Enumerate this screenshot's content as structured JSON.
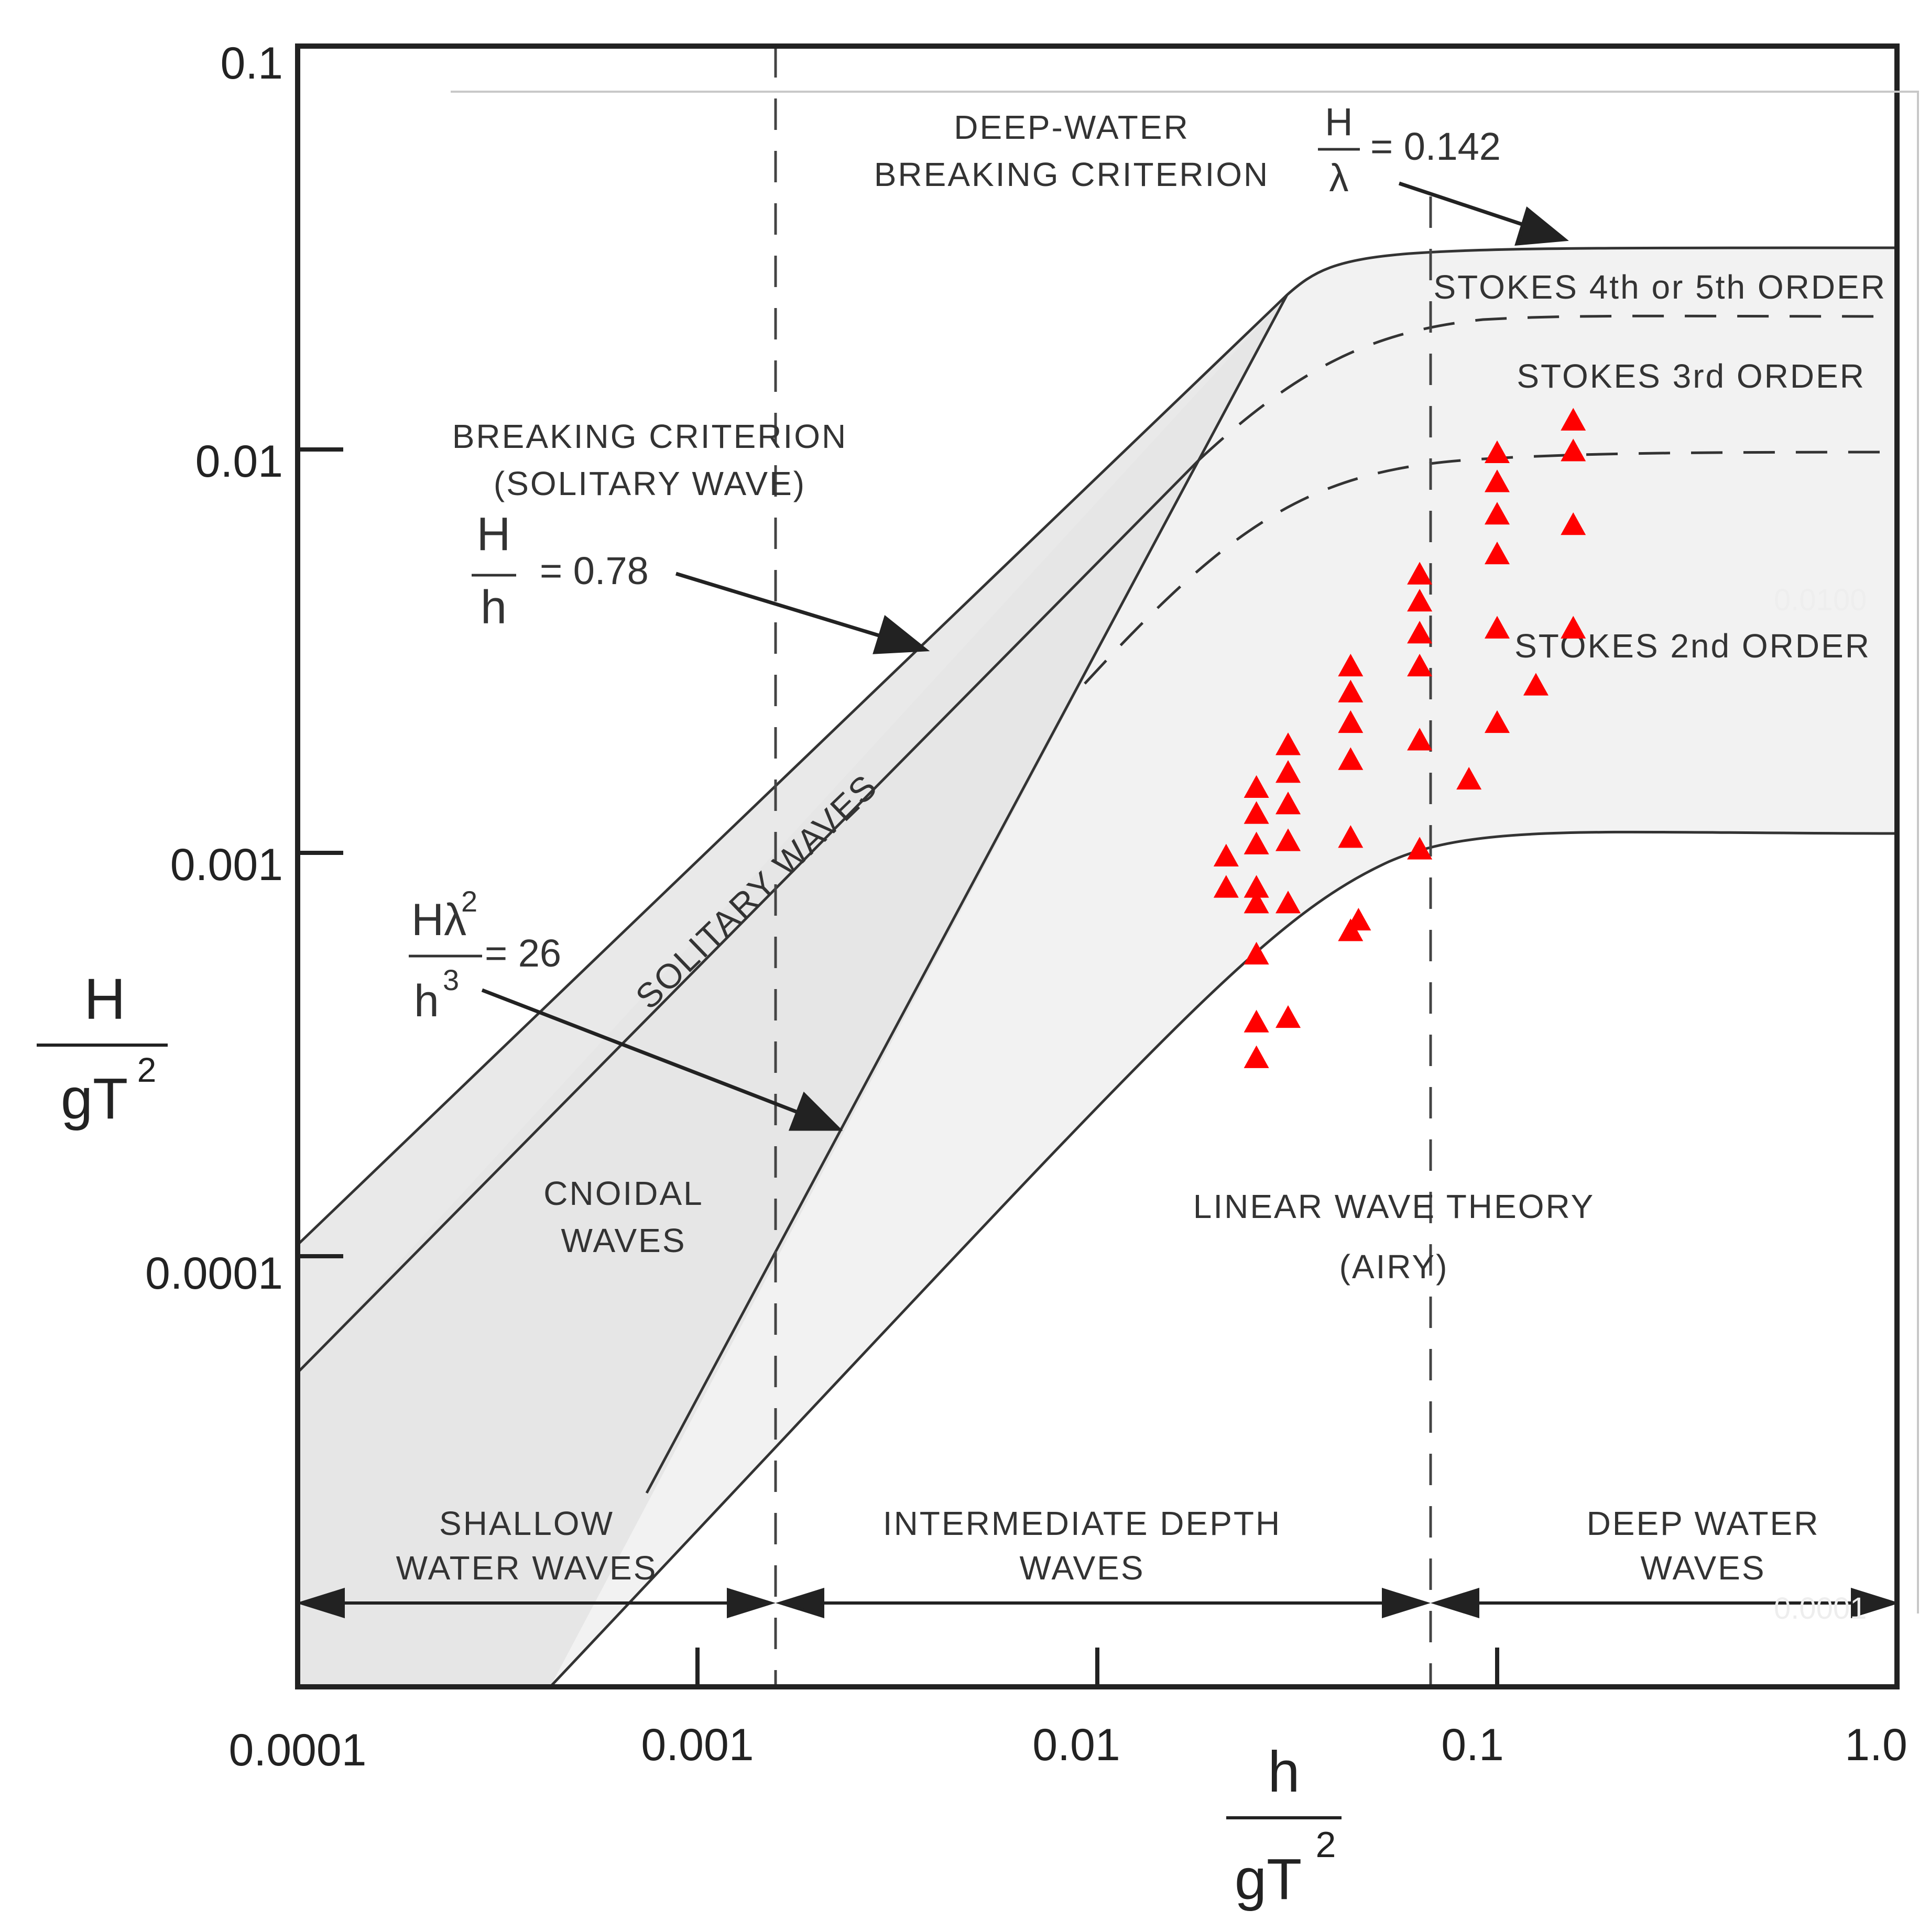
{
  "chart_data": {
    "type": "scatter",
    "x_scale": "log",
    "y_scale": "log",
    "xlim": [
      0.0001,
      1.0
    ],
    "ylim": [
      2e-05,
      0.1
    ],
    "x_tick_labels": [
      "0.0001",
      "0.001",
      "0.01",
      "0.1",
      "1.0"
    ],
    "y_tick_labels": [
      "0.1",
      "0.01",
      "0.001",
      "0.0001"
    ],
    "xlabel": {
      "numerator": "h",
      "denominator": "gT",
      "exponent": "2"
    },
    "ylabel": {
      "numerator": "H",
      "denominator": "gT",
      "exponent": "2"
    },
    "grid": false,
    "region_labels": {
      "deep_water_breaking": [
        "DEEP-WATER",
        "BREAKING CRITERION"
      ],
      "deep_water_ratio": {
        "numerator": "H",
        "denominator": "λ",
        "value": "= 0.142"
      },
      "stokes_45": "STOKES 4th or 5th ORDER",
      "stokes_3": "STOKES 3rd ORDER",
      "stokes_2": "STOKES 2nd ORDER",
      "breaking_solitary": [
        "BREAKING CRITERION",
        "(SOLITARY WAVE)"
      ],
      "solitary_ratio": {
        "numerator": "H",
        "denominator": "h",
        "value": "= 0.78"
      },
      "solitary_waves": "SOLITARY WAVES",
      "ursell": {
        "numerator": "Hλ",
        "num_exp": "2",
        "denominator": "h",
        "den_exp": "3",
        "value": "= 26"
      },
      "cnoidal": [
        "CNOIDAL",
        "WAVES"
      ],
      "linear": [
        "LINEAR WAVE THEORY",
        "(AIRY)"
      ],
      "shallow": [
        "SHALLOW",
        "WATER WAVES"
      ],
      "intermediate": [
        "INTERMEDIATE DEPTH",
        "WAVES"
      ],
      "deep": [
        "DEEP WATER",
        "WAVES"
      ]
    },
    "overlay_labels": [
      "0.0100",
      "0.0001"
    ],
    "markers": {
      "shape": "triangle",
      "color": "#ff0000"
    },
    "points": [
      {
        "x": 0.021,
        "y": 0.00098
      },
      {
        "x": 0.021,
        "y": 0.00082
      },
      {
        "x": 0.025,
        "y": 0.00145
      },
      {
        "x": 0.025,
        "y": 0.00125
      },
      {
        "x": 0.025,
        "y": 0.00105
      },
      {
        "x": 0.025,
        "y": 0.00082
      },
      {
        "x": 0.025,
        "y": 0.00075
      },
      {
        "x": 0.025,
        "y": 0.00056
      },
      {
        "x": 0.025,
        "y": 0.00038
      },
      {
        "x": 0.025,
        "y": 0.00031
      },
      {
        "x": 0.03,
        "y": 0.00185
      },
      {
        "x": 0.03,
        "y": 0.00158
      },
      {
        "x": 0.03,
        "y": 0.00132
      },
      {
        "x": 0.03,
        "y": 0.00107
      },
      {
        "x": 0.03,
        "y": 0.00075
      },
      {
        "x": 0.03,
        "y": 0.00039
      },
      {
        "x": 0.043,
        "y": 0.0029
      },
      {
        "x": 0.043,
        "y": 0.0025
      },
      {
        "x": 0.043,
        "y": 0.0021
      },
      {
        "x": 0.043,
        "y": 0.0017
      },
      {
        "x": 0.043,
        "y": 0.00109
      },
      {
        "x": 0.043,
        "y": 0.00064
      },
      {
        "x": 0.045,
        "y": 0.00068
      },
      {
        "x": 0.064,
        "y": 0.0049
      },
      {
        "x": 0.064,
        "y": 0.0042
      },
      {
        "x": 0.064,
        "y": 0.0035
      },
      {
        "x": 0.064,
        "y": 0.0029
      },
      {
        "x": 0.064,
        "y": 0.0019
      },
      {
        "x": 0.064,
        "y": 0.00102
      },
      {
        "x": 0.085,
        "y": 0.00152
      },
      {
        "x": 0.1,
        "y": 0.0098
      },
      {
        "x": 0.1,
        "y": 0.0083
      },
      {
        "x": 0.1,
        "y": 0.0069
      },
      {
        "x": 0.1,
        "y": 0.0055
      },
      {
        "x": 0.1,
        "y": 0.0036
      },
      {
        "x": 0.1,
        "y": 0.0021
      },
      {
        "x": 0.125,
        "y": 0.0026
      },
      {
        "x": 0.155,
        "y": 0.0118
      },
      {
        "x": 0.155,
        "y": 0.0099
      },
      {
        "x": 0.155,
        "y": 0.0065
      },
      {
        "x": 0.155,
        "y": 0.0036
      }
    ]
  }
}
